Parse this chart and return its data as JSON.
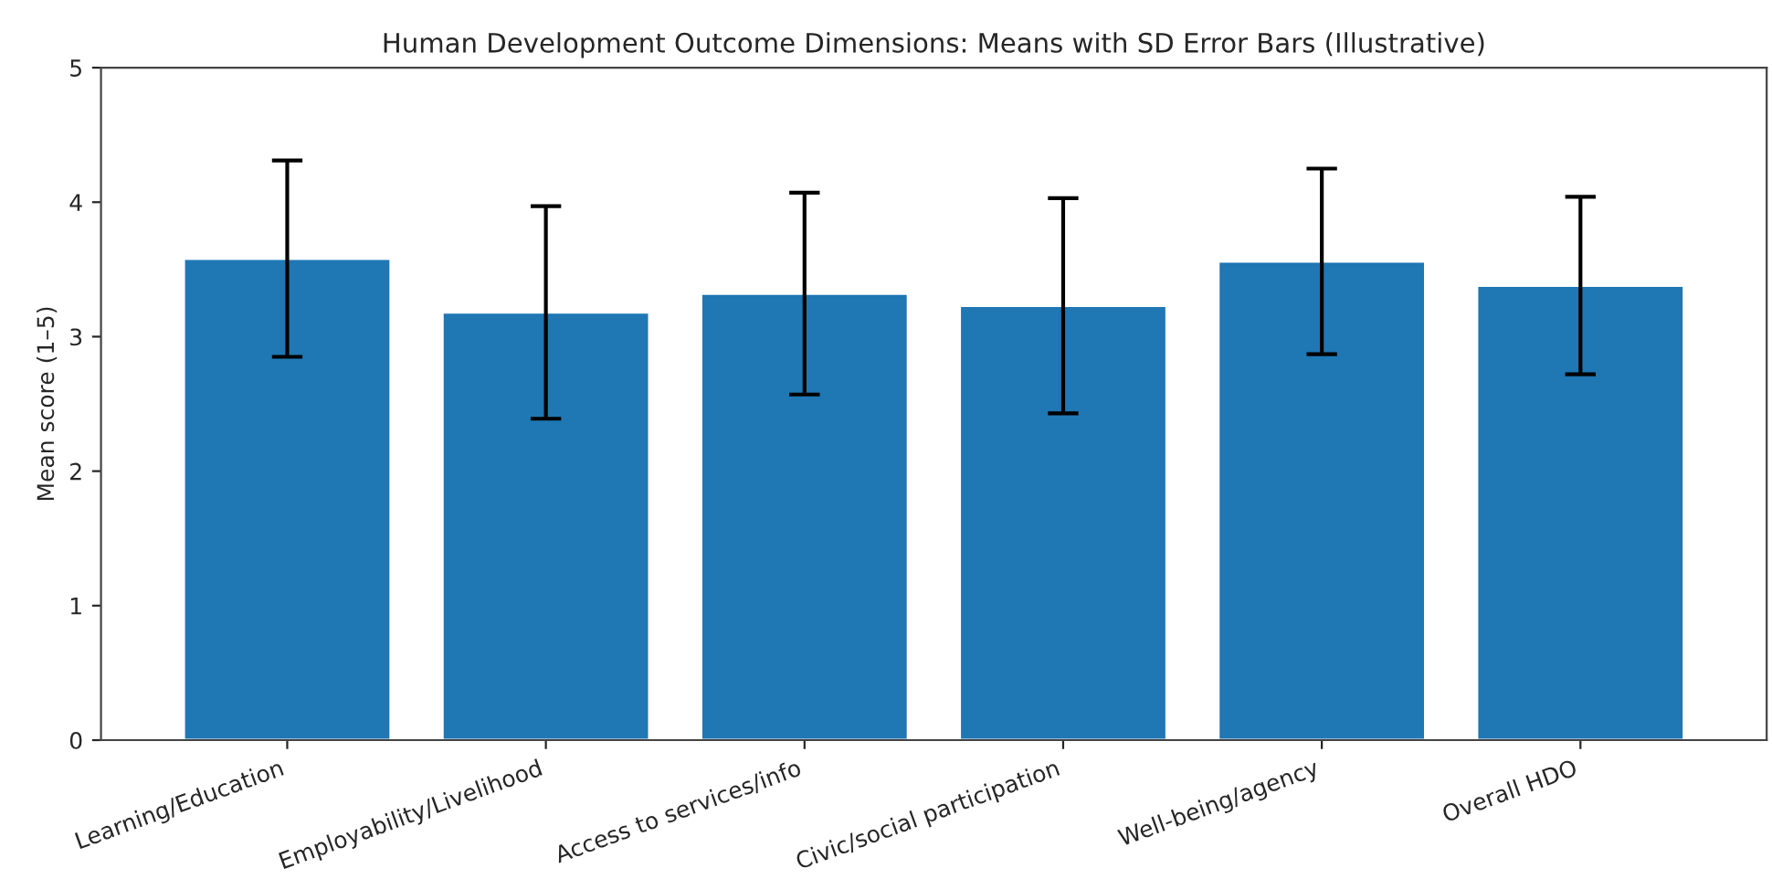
{
  "chart_data": {
    "type": "bar",
    "title": "Human Development Outcome Dimensions: Means with SD Error Bars (Illustrative)",
    "ylabel": "Mean score (1–5)",
    "categories": [
      "Learning/Education",
      "Employability/Livelihood",
      "Access to services/info",
      "Civic/social participation",
      "Well-being/agency",
      "Overall HDO"
    ],
    "values": [
      3.58,
      3.18,
      3.32,
      3.23,
      3.56,
      3.38
    ],
    "errors": [
      0.73,
      0.79,
      0.75,
      0.8,
      0.69,
      0.66
    ],
    "color": "#1f77b4",
    "ylim": [
      0,
      5
    ],
    "yticks": [
      0,
      1,
      2,
      3,
      4,
      5
    ],
    "grid": false,
    "legend": false
  }
}
